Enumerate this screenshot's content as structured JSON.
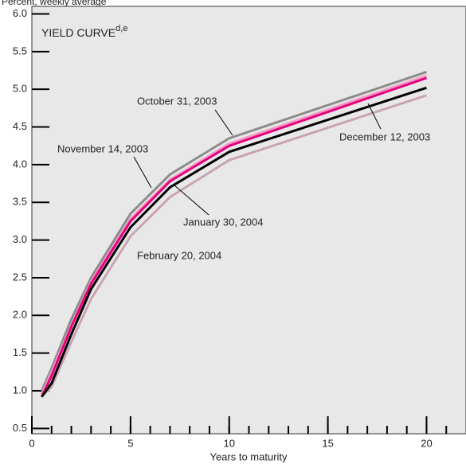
{
  "chart_data": {
    "type": "line",
    "title": "YIELD CURVE",
    "title_superscript": "d,e",
    "subtitle": "Percent, weekly average",
    "x_label": "Years to maturity",
    "x": [
      0.5,
      1,
      2,
      3,
      5,
      7,
      10,
      20
    ],
    "series": [
      {
        "name": "February 20, 2004",
        "color": "#c9a3b5",
        "values": [
          0.93,
          1.05,
          1.65,
          2.22,
          3.05,
          3.57,
          4.06,
          4.92
        ]
      },
      {
        "name": "November 14, 2003",
        "color": "#8c8c8c",
        "values": [
          1.0,
          1.3,
          1.95,
          2.5,
          3.35,
          3.87,
          4.35,
          5.23
        ]
      },
      {
        "name": "October 31, 2003",
        "color": "#f29bc4",
        "values": [
          0.95,
          1.25,
          1.87,
          2.45,
          3.28,
          3.8,
          4.28,
          5.18
        ]
      },
      {
        "name": "December 12, 2003",
        "color": "#e6007e",
        "values": [
          0.92,
          1.2,
          1.85,
          2.42,
          3.25,
          3.78,
          4.25,
          5.15
        ]
      },
      {
        "name": "January 30, 2004",
        "color": "#000000",
        "values": [
          0.92,
          1.1,
          1.75,
          2.35,
          3.17,
          3.7,
          4.17,
          5.02
        ]
      }
    ],
    "xlim": [
      0,
      22
    ],
    "xticks": [
      0,
      5,
      10,
      15,
      20
    ],
    "xminorticks": [
      1,
      2,
      3,
      4,
      5,
      6,
      7,
      8,
      9,
      10,
      11,
      12,
      13,
      14,
      15,
      16,
      17,
      18,
      19,
      20,
      21
    ],
    "ylim": [
      0.43,
      6.1
    ],
    "yticks": [
      0.5,
      {
        "value": 1,
        "label": "1.0"
      },
      1.5,
      {
        "value": 2,
        "label": "2.0"
      },
      2.5,
      {
        "value": 3,
        "label": "3.0"
      },
      3.5,
      {
        "value": 4,
        "label": "4.0"
      },
      4.5,
      {
        "value": 5,
        "label": "5.0"
      },
      5.5,
      {
        "value": 6,
        "label": "6.0"
      }
    ]
  }
}
